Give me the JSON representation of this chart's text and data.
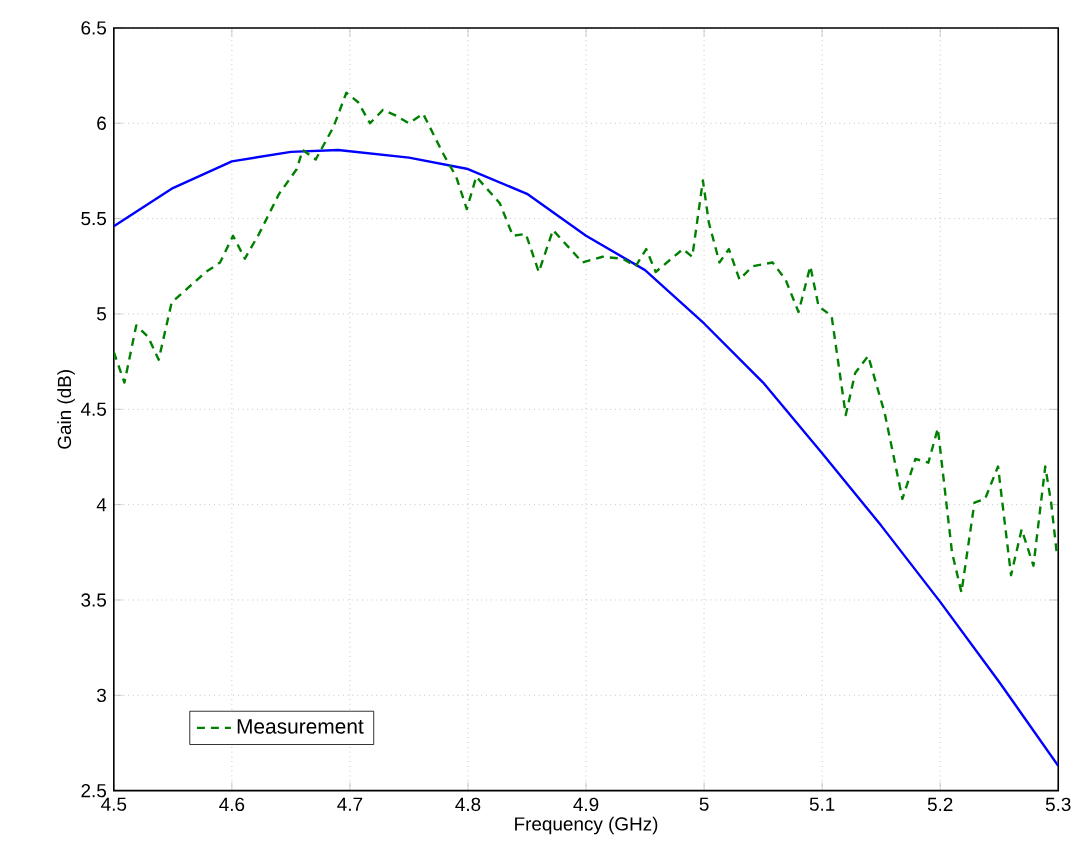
{
  "chart_data": {
    "type": "line",
    "xlabel": "Frequency (GHz)",
    "ylabel": "Gain (dB)",
    "xlim": [
      4.5,
      5.3
    ],
    "xticks": [
      4.5,
      4.6,
      4.7,
      4.8,
      4.9,
      5,
      5.1,
      5.2,
      5.3
    ],
    "ylim": [
      2.5,
      6.5
    ],
    "yticks": [
      2.5,
      3,
      3.5,
      4,
      4.5,
      5,
      5.5,
      6,
      6.5
    ],
    "grid": true,
    "legend": "bottom left",
    "series": [
      {
        "color": "#0000ff",
        "line_style": "solid",
        "x": [
          4.5,
          4.55,
          4.6,
          4.65,
          4.69,
          4.75,
          4.8,
          4.85,
          4.9,
          4.95,
          5,
          5.05,
          5.1,
          5.15,
          5.2,
          5.25,
          5.3
        ],
        "values": [
          5.46,
          5.66,
          5.8,
          5.85,
          5.86,
          5.82,
          5.76,
          5.63,
          5.41,
          5.23,
          4.95,
          4.64,
          4.27,
          3.89,
          3.49,
          3.07,
          2.63
        ]
      },
      {
        "name": "Measurement",
        "color": "#008000",
        "line_style": "dashed",
        "x": [
          4.5,
          4.509,
          4.519,
          4.529,
          4.538,
          4.549,
          4.567,
          4.578,
          4.59,
          4.601,
          4.611,
          4.623,
          4.64,
          4.655,
          4.66,
          4.671,
          4.686,
          4.697,
          4.707,
          4.717,
          4.728,
          4.739,
          4.75,
          4.762,
          4.779,
          4.79,
          4.799,
          4.807,
          4.827,
          4.838,
          4.849,
          4.86,
          4.872,
          4.897,
          4.914,
          4.931,
          4.942,
          4.951,
          4.959,
          4.982,
          4.99,
          4.999,
          5.004,
          5.013,
          5.021,
          5.03,
          5.041,
          5.058,
          5.069,
          5.08,
          5.09,
          5.097,
          5.108,
          5.12,
          5.128,
          5.139,
          5.153,
          5.168,
          5.179,
          5.19,
          5.198,
          5.21,
          5.218,
          5.229,
          5.238,
          5.249,
          5.26,
          5.269,
          5.279,
          5.289,
          5.294,
          5.299
        ],
        "values": [
          4.8,
          4.64,
          4.94,
          4.88,
          4.76,
          5.06,
          5.16,
          5.22,
          5.27,
          5.41,
          5.29,
          5.42,
          5.63,
          5.76,
          5.86,
          5.81,
          5.98,
          6.16,
          6.11,
          6.0,
          6.07,
          6.04,
          6.0,
          6.05,
          5.84,
          5.72,
          5.55,
          5.72,
          5.58,
          5.41,
          5.42,
          5.22,
          5.44,
          5.27,
          5.3,
          5.29,
          5.25,
          5.34,
          5.22,
          5.34,
          5.3,
          5.7,
          5.48,
          5.27,
          5.34,
          5.18,
          5.25,
          5.27,
          5.18,
          5.01,
          5.25,
          5.04,
          4.99,
          4.47,
          4.69,
          4.78,
          4.48,
          4.03,
          4.24,
          4.22,
          4.4,
          3.75,
          3.54,
          4.01,
          4.03,
          4.2,
          3.63,
          3.87,
          3.68,
          4.2,
          4.01,
          3.73
        ]
      }
    ]
  }
}
